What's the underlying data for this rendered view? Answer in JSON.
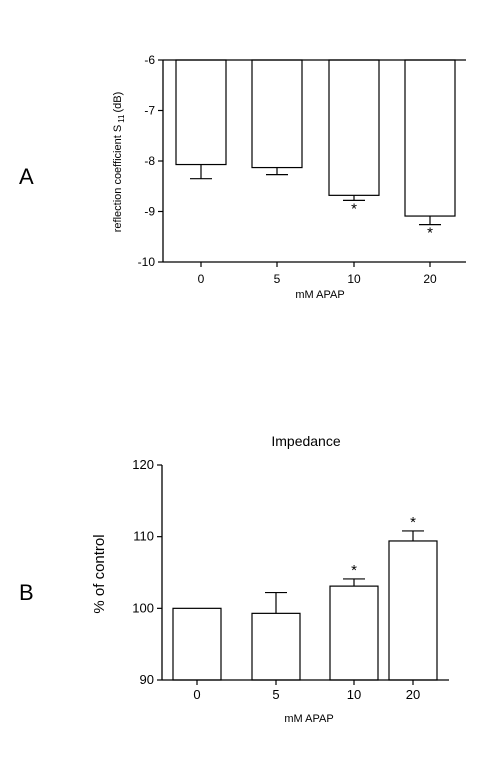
{
  "panel_labels": [
    "A",
    "B"
  ],
  "chart_data": [
    {
      "panel": "A",
      "type": "bar",
      "title": "",
      "xlabel": "mM APAP",
      "ylabel_main": "reflection coefficient S",
      "ylabel_subscript": "11",
      "ylabel_unit": "(dB)",
      "categories": [
        "0",
        "5",
        "10",
        "20"
      ],
      "values": [
        -8.07,
        -8.13,
        -8.68,
        -9.09
      ],
      "errors": [
        0.28,
        0.14,
        0.1,
        0.17
      ],
      "significance": [
        "",
        "",
        "*",
        "*"
      ],
      "ylim": [
        -10,
        -6
      ],
      "yticks": [
        "-6",
        "-7",
        "-8",
        "-9",
        "-10"
      ],
      "bar_origin": -6
    },
    {
      "panel": "B",
      "type": "bar",
      "title": "Impedance",
      "xlabel": "mM APAP",
      "ylabel": "% of control",
      "categories": [
        "0",
        "5",
        "10",
        "20"
      ],
      "values": [
        100.0,
        99.3,
        103.1,
        109.4
      ],
      "errors": [
        0.0,
        2.9,
        1.0,
        1.4
      ],
      "significance": [
        "",
        "",
        "*",
        "*"
      ],
      "ylim": [
        90,
        120
      ],
      "yticks": [
        "90",
        "100",
        "110",
        "120"
      ],
      "bar_origin": 90
    }
  ]
}
